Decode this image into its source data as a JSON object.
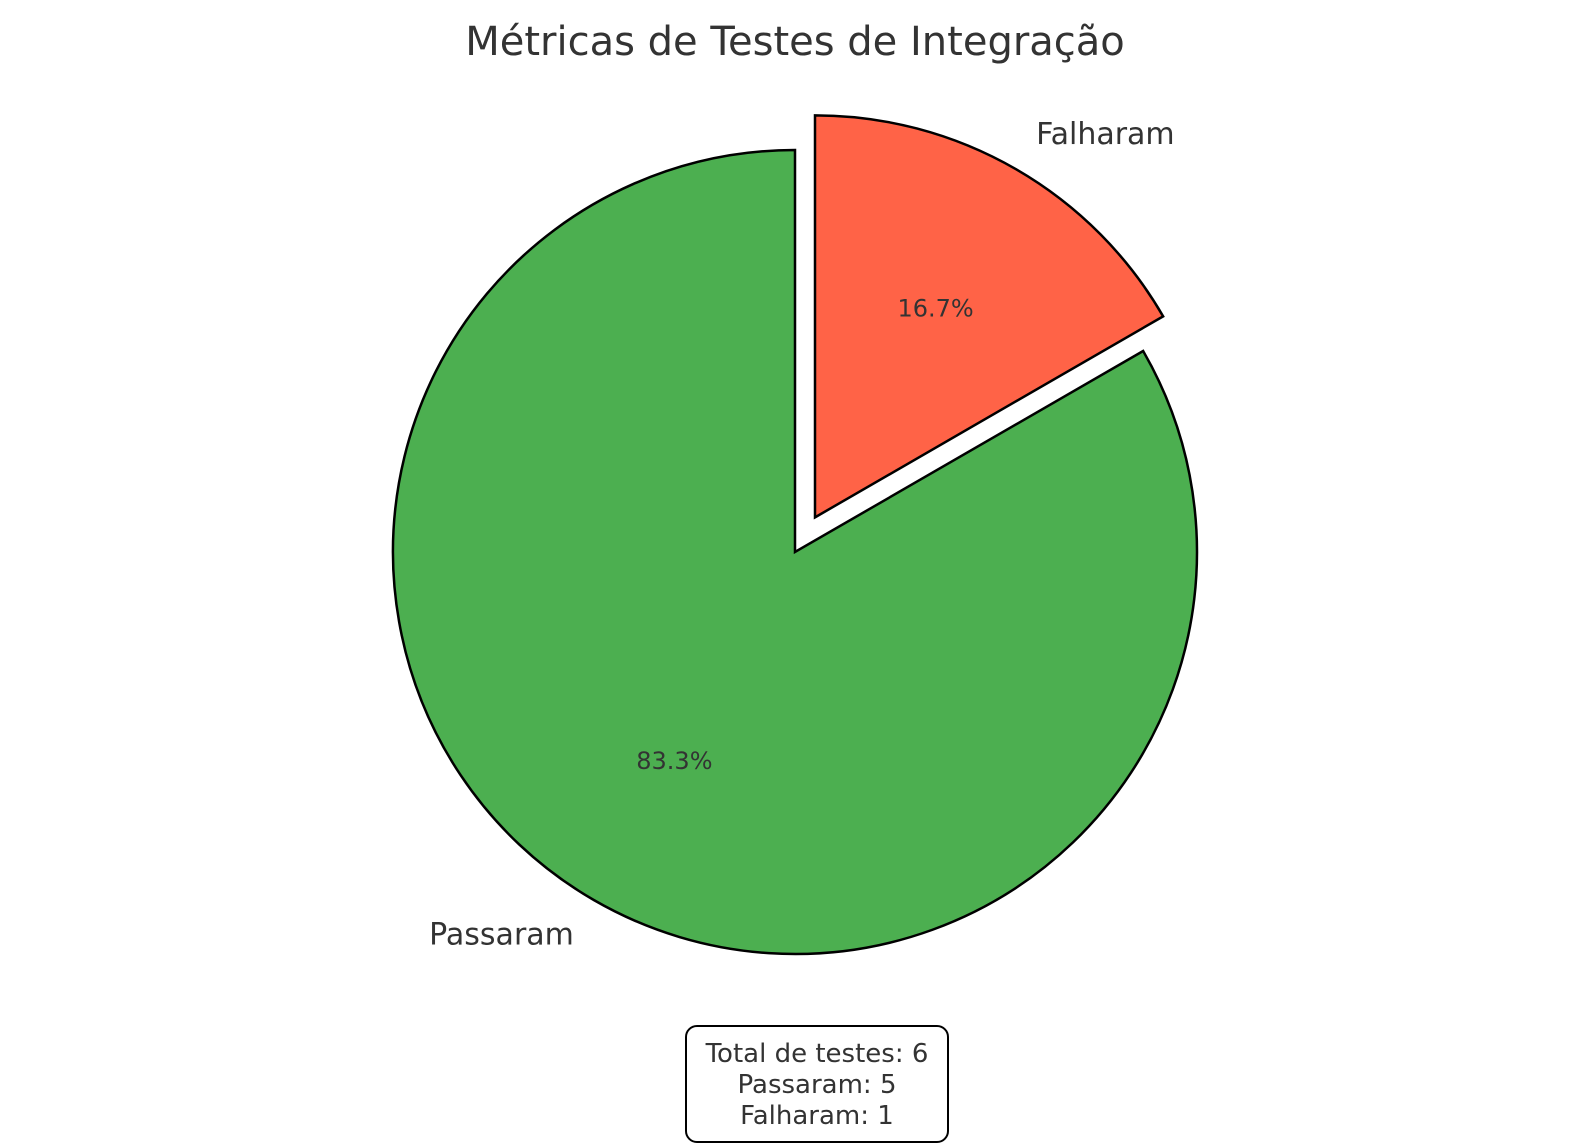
{
  "chart_data": {
    "type": "pie",
    "title": "Métricas de Testes de Integração",
    "categories": [
      "Passaram",
      "Falharam"
    ],
    "values": [
      5,
      1
    ],
    "percent_labels": [
      "83.3%",
      "16.7%"
    ],
    "colors": [
      "#4CAF50",
      "#FF6347"
    ],
    "exploded": [
      false,
      true
    ],
    "start_angle_deg": 90,
    "direction": "clockwise",
    "edge_color": "#000000"
  },
  "summary": {
    "total_line": "Total de testes: 6",
    "passed_line": "Passaram: 5",
    "failed_line": "Falharam: 1"
  }
}
